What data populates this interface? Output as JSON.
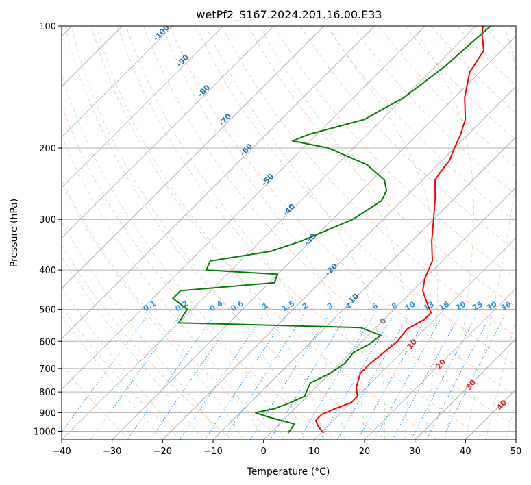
{
  "chart_data": {
    "type": "line",
    "diagram": "Skew-T log-P",
    "title": "wetPf2_S167.2024.201.16.00.E33",
    "xlabel": "Temperature (°C)",
    "ylabel": "Pressure (hPa)",
    "xlim": [
      -40,
      50
    ],
    "ylim": [
      1050,
      100
    ],
    "y_scale": "log",
    "grid": true,
    "x_ticks": [
      -40,
      -30,
      -20,
      -10,
      0,
      10,
      20,
      30,
      40,
      50
    ],
    "x_tick_labels": [
      "−40",
      "−30",
      "−20",
      "−10",
      "0",
      "10",
      "20",
      "30",
      "40",
      "50"
    ],
    "y_ticks": [
      1000,
      900,
      800,
      700,
      600,
      500,
      400,
      300,
      200,
      100
    ],
    "y_tick_labels": [
      "1000",
      "900",
      "800",
      "700",
      "600",
      "500",
      "400",
      "300",
      "200",
      "100"
    ],
    "series": [
      {
        "color": "#ff0000",
        "points": [
          {
            "p": 1010,
            "t": 10.5
          },
          {
            "p": 970,
            "t": 8.0
          },
          {
            "p": 940,
            "t": 6.5
          },
          {
            "p": 910,
            "t": 6.5
          },
          {
            "p": 880,
            "t": 8.0
          },
          {
            "p": 850,
            "t": 10.0
          },
          {
            "p": 820,
            "t": 10.0
          },
          {
            "p": 780,
            "t": 8.0
          },
          {
            "p": 720,
            "t": 6.0
          },
          {
            "p": 680,
            "t": 6.0
          },
          {
            "p": 640,
            "t": 6.5
          },
          {
            "p": 600,
            "t": 7.0
          },
          {
            "p": 560,
            "t": 6.5
          },
          {
            "p": 530,
            "t": 8.0
          },
          {
            "p": 510,
            "t": 8.0
          },
          {
            "p": 480,
            "t": 5.0
          },
          {
            "p": 450,
            "t": 2.0
          },
          {
            "p": 420,
            "t": 0.0
          },
          {
            "p": 380,
            "t": -2.0
          },
          {
            "p": 340,
            "t": -6.0
          },
          {
            "p": 300,
            "t": -10.0
          },
          {
            "p": 265,
            "t": -14.0
          },
          {
            "p": 240,
            "t": -17.5
          },
          {
            "p": 230,
            "t": -18.0
          },
          {
            "p": 215,
            "t": -18.5
          },
          {
            "p": 200,
            "t": -20.0
          },
          {
            "p": 185,
            "t": -21.5
          },
          {
            "p": 170,
            "t": -23.5
          },
          {
            "p": 150,
            "t": -28.0
          },
          {
            "p": 130,
            "t": -32.0
          },
          {
            "p": 115,
            "t": -33.5
          },
          {
            "p": 105,
            "t": -37.0
          },
          {
            "p": 100,
            "t": -38.5
          }
        ]
      },
      {
        "color": "#008000",
        "points": [
          {
            "p": 1010,
            "t": 3.5
          },
          {
            "p": 960,
            "t": 3.0
          },
          {
            "p": 920,
            "t": -4.0
          },
          {
            "p": 900,
            "t": -7.0
          },
          {
            "p": 880,
            "t": -4.0
          },
          {
            "p": 850,
            "t": -2.0
          },
          {
            "p": 820,
            "t": -0.5
          },
          {
            "p": 800,
            "t": -1.0
          },
          {
            "p": 760,
            "t": -2.0
          },
          {
            "p": 720,
            "t": 0.0
          },
          {
            "p": 680,
            "t": 1.0
          },
          {
            "p": 640,
            "t": 0.5
          },
          {
            "p": 610,
            "t": 2.0
          },
          {
            "p": 580,
            "t": 2.5
          },
          {
            "p": 555,
            "t": -3.0
          },
          {
            "p": 540,
            "t": -40.0
          },
          {
            "p": 500,
            "t": -41.0
          },
          {
            "p": 470,
            "t": -46.0
          },
          {
            "p": 450,
            "t": -46.0
          },
          {
            "p": 430,
            "t": -29.0
          },
          {
            "p": 410,
            "t": -30.0
          },
          {
            "p": 400,
            "t": -45.0
          },
          {
            "p": 380,
            "t": -46.0
          },
          {
            "p": 360,
            "t": -36.0
          },
          {
            "p": 340,
            "t": -32.0
          },
          {
            "p": 300,
            "t": -26.0
          },
          {
            "p": 270,
            "t": -24.0
          },
          {
            "p": 255,
            "t": -25.0
          },
          {
            "p": 240,
            "t": -27.5
          },
          {
            "p": 220,
            "t": -34.0
          },
          {
            "p": 200,
            "t": -45.0
          },
          {
            "p": 192,
            "t": -53.5
          },
          {
            "p": 185,
            "t": -51.5
          },
          {
            "p": 170,
            "t": -43.5
          },
          {
            "p": 150,
            "t": -40.0
          },
          {
            "p": 125,
            "t": -38.0
          },
          {
            "p": 110,
            "t": -37.5
          },
          {
            "p": 100,
            "t": -37.0
          }
        ]
      }
    ],
    "annotations": {
      "mixing_ratio_lines": [
        "0.1",
        "0.2",
        "0.4",
        "0.6",
        "1",
        "1.5",
        "2",
        "3",
        "4",
        "6",
        "8",
        "10",
        "13",
        "16",
        "20",
        "25",
        "30",
        "36"
      ],
      "dry_adiabat_labels": [
        "-100",
        "-90",
        "-80",
        "-70",
        "-60",
        "-50",
        "-40",
        "-30",
        "-20",
        "-10"
      ],
      "moist_adiabat_labels": [
        "0",
        "10",
        "20",
        "30",
        "40"
      ]
    }
  }
}
